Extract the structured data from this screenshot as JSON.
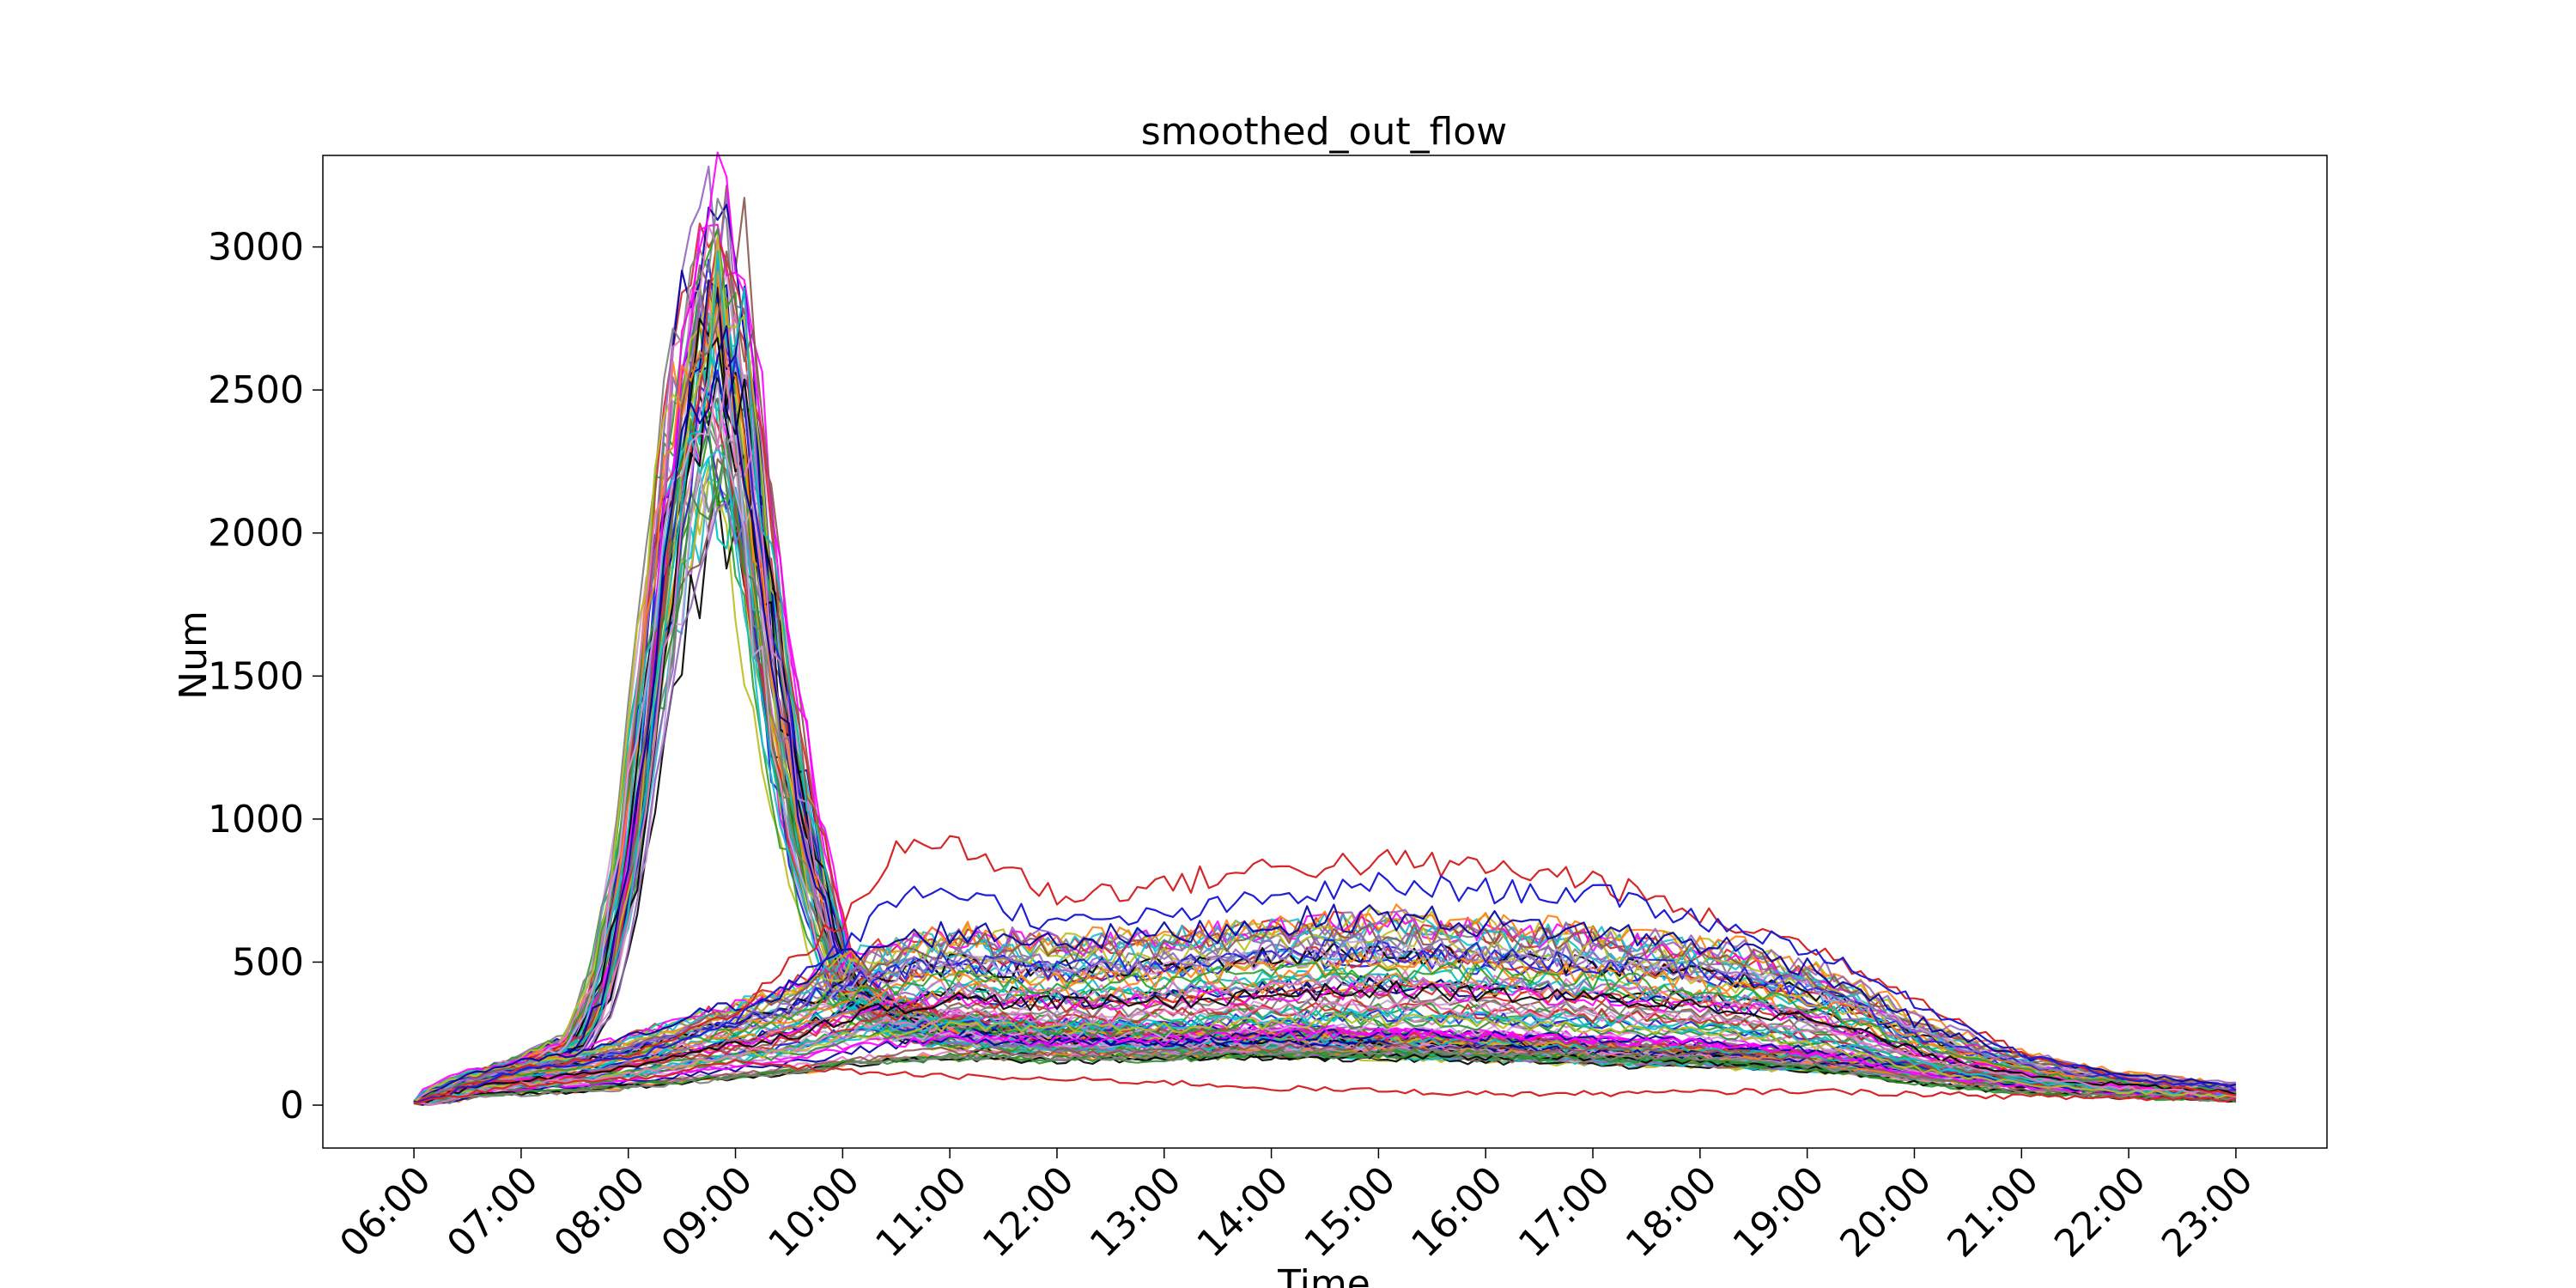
{
  "chart_data": {
    "type": "line",
    "title": "smoothed_out_flow",
    "xlabel": "Time",
    "ylabel": "Num",
    "x_ticks": [
      "06:00",
      "07:00",
      "08:00",
      "09:00",
      "10:00",
      "11:00",
      "12:00",
      "13:00",
      "14:00",
      "15:00",
      "16:00",
      "17:00",
      "18:00",
      "19:00",
      "20:00",
      "21:00",
      "22:00",
      "23:00"
    ],
    "xlim": [
      "05:09",
      "23:51"
    ],
    "ylim": [
      -150,
      3320
    ],
    "y_ticks": [
      0,
      500,
      1000,
      1500,
      2000,
      2500,
      3000
    ],
    "grid": false,
    "legend": "none",
    "series_count": 120,
    "palette": [
      "#1f1fd6",
      "#d62728",
      "#2ca02c",
      "#17becf",
      "#9467bd",
      "#bcbd22",
      "#000000",
      "#e377c2",
      "#8c564b",
      "#00c0c0",
      "#c8a2d8",
      "#0000a0",
      "#ff00ff",
      "#2f8f2f",
      "#ff7f0e",
      "#7f7f7f"
    ],
    "morning_profile": {
      "times": [
        "06:00",
        "06:30",
        "07:00",
        "07:30",
        "07:45",
        "08:00",
        "08:15",
        "08:30",
        "08:45",
        "09:00",
        "09:15",
        "09:30",
        "09:45",
        "10:00",
        "10:30",
        "11:00",
        "12:00",
        "13:00",
        "14:00",
        "15:00",
        "16:00",
        "17:00",
        "18:00",
        "19:00",
        "19:30",
        "20:00",
        "20:30",
        "21:00",
        "21:30",
        "22:00",
        "22:30",
        "23:00"
      ],
      "values": [
        5,
        100,
        150,
        230,
        450,
        950,
        1800,
        2500,
        2850,
        2700,
        1900,
        1250,
        800,
        450,
        320,
        280,
        250,
        240,
        240,
        230,
        220,
        200,
        190,
        170,
        150,
        130,
        110,
        90,
        75,
        60,
        50,
        40
      ]
    },
    "allday_profile": {
      "times": [
        "06:00",
        "06:30",
        "07:00",
        "07:30",
        "08:00",
        "08:30",
        "09:00",
        "09:30",
        "10:00",
        "10:30",
        "11:00",
        "12:00",
        "13:00",
        "14:00",
        "15:00",
        "16:00",
        "17:00",
        "18:00",
        "18:30",
        "19:00",
        "19:30",
        "20:00",
        "20:30",
        "21:00",
        "21:30",
        "22:00",
        "22:30",
        "23:00"
      ],
      "values": [
        5,
        80,
        110,
        130,
        170,
        220,
        260,
        300,
        380,
        420,
        450,
        430,
        440,
        470,
        490,
        470,
        450,
        420,
        400,
        360,
        300,
        220,
        170,
        130,
        100,
        80,
        65,
        50
      ]
    },
    "notable_series": [
      {
        "times": [
          "06:00",
          "07:00",
          "08:00",
          "09:00",
          "10:00",
          "10:30",
          "11:00",
          "12:00",
          "13:00",
          "14:00",
          "15:00",
          "16:00",
          "17:00",
          "18:00",
          "19:00",
          "20:00",
          "21:00",
          "22:00",
          "23:00"
        ],
        "values": [
          5,
          130,
          170,
          330,
          650,
          880,
          930,
          730,
          770,
          830,
          850,
          830,
          790,
          660,
          560,
          380,
          180,
          90,
          40
        ]
      },
      {
        "times": [
          "06:00",
          "07:00",
          "08:00",
          "09:00",
          "10:00",
          "10:30",
          "11:00",
          "12:00",
          "13:00",
          "14:00",
          "15:00",
          "16:00",
          "17:00",
          "18:00",
          "19:00",
          "20:00",
          "21:00",
          "22:00",
          "23:00"
        ],
        "values": [
          5,
          120,
          160,
          300,
          550,
          720,
          760,
          630,
          660,
          720,
          770,
          750,
          740,
          650,
          550,
          360,
          180,
          90,
          60
        ]
      },
      {
        "times": [
          "06:00",
          "07:00",
          "08:00",
          "09:00",
          "10:00",
          "11:00",
          "12:00",
          "13:00",
          "14:00",
          "15:00",
          "16:00",
          "17:00",
          "18:00",
          "19:00",
          "20:00",
          "21:00",
          "22:00",
          "23:00"
        ],
        "values": [
          5,
          70,
          90,
          150,
          120,
          100,
          90,
          80,
          60,
          50,
          40,
          40,
          45,
          50,
          40,
          30,
          25,
          20
        ]
      }
    ]
  }
}
